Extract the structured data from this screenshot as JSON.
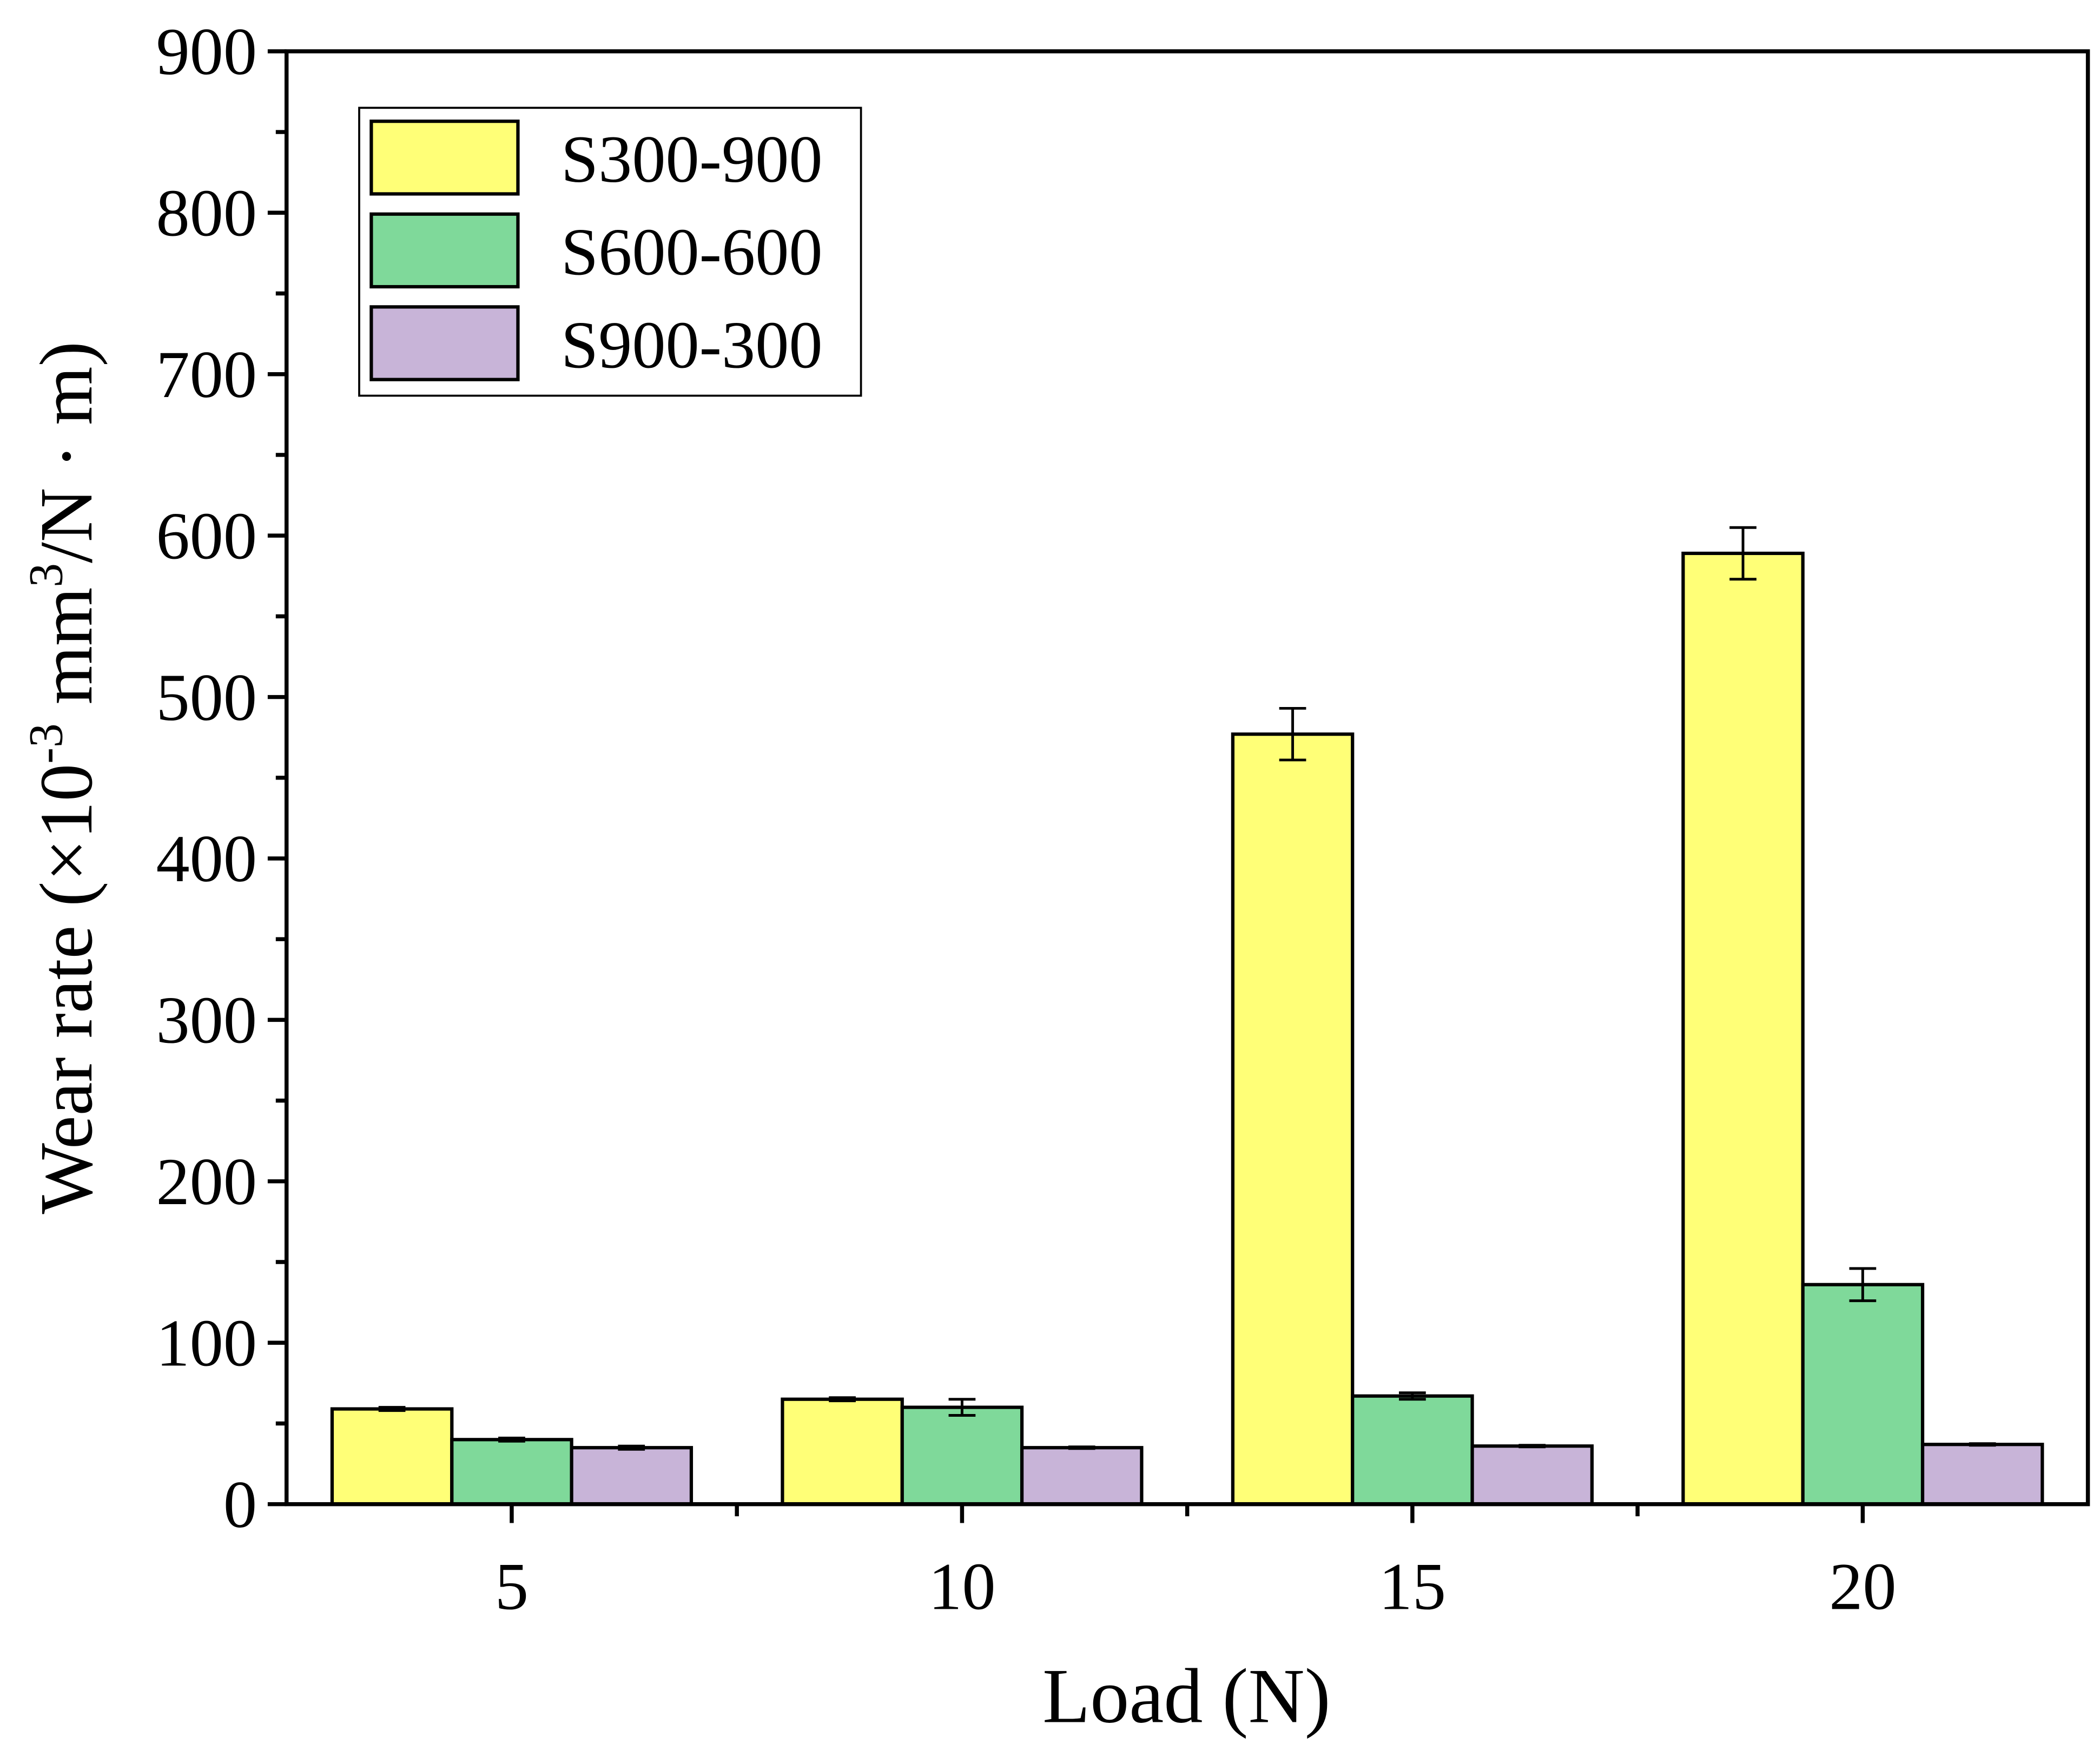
{
  "chart_data": {
    "type": "bar",
    "x_label": "Load (N)",
    "y_label": [
      "Wear rate (×10",
      "-3",
      " mm",
      "3",
      "/N · m)"
    ],
    "categories": [
      "5",
      "10",
      "15",
      "20"
    ],
    "series": [
      {
        "name": "S300-900",
        "color": "#ffff77",
        "values": [
          59,
          65,
          477,
          589
        ],
        "errors": [
          1,
          1,
          16,
          16
        ]
      },
      {
        "name": "S600-600",
        "color": "#7fd99a",
        "values": [
          40,
          60,
          67,
          136
        ],
        "errors": [
          1,
          5,
          2,
          10
        ]
      },
      {
        "name": "S900-300",
        "color": "#c8b4d8",
        "values": [
          35,
          35,
          36,
          37
        ],
        "errors": [
          1,
          0.5,
          0.5,
          0.5
        ]
      }
    ],
    "ylim": [
      0,
      900
    ],
    "yticks": [
      0,
      100,
      200,
      300,
      400,
      500,
      600,
      700,
      800,
      900
    ],
    "yminorticks": [
      50,
      150,
      250,
      350,
      450,
      550,
      650,
      750,
      850
    ],
    "grid": false,
    "legend": "upper left"
  }
}
